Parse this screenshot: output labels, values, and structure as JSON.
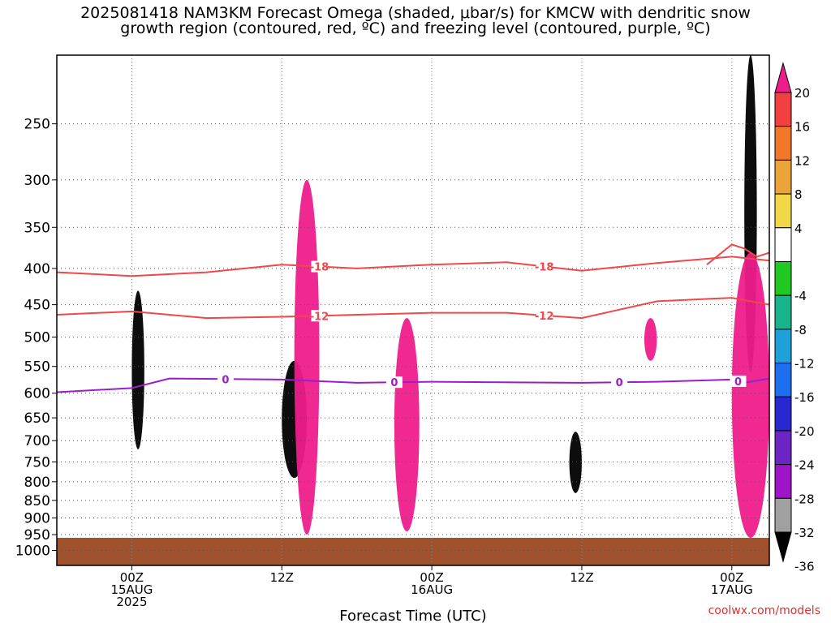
{
  "chart_data": {
    "type": "heatmap",
    "title_line1": "2025081418 NAM3KM Forecast Omega (shaded, μbar/s) for KMCW with dendritic snow",
    "title_line2": "growth region (contoured, red, ºC) and freezing level (contoured, purple, ºC)",
    "xlabel": "Forecast Time (UTC)",
    "ylabel": "",
    "credit": "coolwx.com/models",
    "y_axis": {
      "scale": "log",
      "ylim": [
        1050,
        200
      ],
      "ticks": [
        250,
        300,
        350,
        400,
        450,
        500,
        550,
        600,
        650,
        700,
        750,
        800,
        850,
        900,
        950,
        1000
      ]
    },
    "x_axis": {
      "xlim": [
        "2025-08-14 18Z",
        "2025-08-17 03Z"
      ],
      "ticks": [
        {
          "time": "2025-08-15 00Z",
          "lines": [
            "00Z",
            "15AUG",
            "2025"
          ]
        },
        {
          "time": "2025-08-15 12Z",
          "lines": [
            "12Z"
          ]
        },
        {
          "time": "2025-08-16 00Z",
          "lines": [
            "00Z",
            "16AUG"
          ]
        },
        {
          "time": "2025-08-16 12Z",
          "lines": [
            "12Z"
          ]
        },
        {
          "time": "2025-08-17 00Z",
          "lines": [
            "00Z",
            "17AUG"
          ]
        }
      ]
    },
    "colorbar": {
      "labels": [
        "20",
        "16",
        "12",
        "8",
        "4",
        "-4",
        "-8",
        "-12",
        "-16",
        "-20",
        "-24",
        "-28",
        "-32",
        "-36"
      ],
      "bands": [
        {
          "range": "> 20",
          "color": "#ee1c8c"
        },
        {
          "range": "16 to 20",
          "color": "#f24040"
        },
        {
          "range": "12 to 16",
          "color": "#f07828"
        },
        {
          "range": "8 to 12",
          "color": "#eba43a"
        },
        {
          "range": "4 to 8",
          "color": "#f0d848"
        },
        {
          "range": "-4 to 4",
          "color": "#ffffff"
        },
        {
          "range": "-8 to -4",
          "color": "#22c822"
        },
        {
          "range": "-12 to -8",
          "color": "#18b48c"
        },
        {
          "range": "-16 to -12",
          "color": "#1ea0d8"
        },
        {
          "range": "-20 to -16",
          "color": "#1e6ef0"
        },
        {
          "range": "-24 to -20",
          "color": "#2828d0"
        },
        {
          "range": "-28 to -24",
          "color": "#6c24c4"
        },
        {
          "range": "-32 to -28",
          "color": "#a014c8"
        },
        {
          "range": "-36 to -32",
          "color": "#a0a0a0"
        },
        {
          "range": "< -36",
          "color": "#000000"
        }
      ]
    },
    "ground_color": "#a0522d",
    "contours": [
      {
        "value": "-18",
        "color": "#f04848",
        "labels": [
          "-18",
          "-18"
        ],
        "points": [
          [
            "2025-08-14 18Z",
            405
          ],
          [
            "2025-08-15 00Z",
            410
          ],
          [
            "2025-08-15 06Z",
            405
          ],
          [
            "2025-08-15 12Z",
            395
          ],
          [
            "2025-08-15 18Z",
            400
          ],
          [
            "2025-08-16 00Z",
            395
          ],
          [
            "2025-08-16 06Z",
            392
          ],
          [
            "2025-08-16 12Z",
            403
          ],
          [
            "2025-08-16 18Z",
            393
          ],
          [
            "2025-08-17 00Z",
            385
          ],
          [
            "2025-08-17 03Z",
            390
          ]
        ]
      },
      {
        "value": "-18 (upper)",
        "color": "#f04848",
        "labels": [],
        "points": [
          [
            "2025-08-16 22Z",
            395
          ],
          [
            "2025-08-17 00Z",
            370
          ],
          [
            "2025-08-17 01Z",
            375
          ],
          [
            "2025-08-17 02Z",
            385
          ],
          [
            "2025-08-17 03Z",
            380
          ]
        ]
      },
      {
        "value": "-12",
        "color": "#f04848",
        "labels": [
          "-12",
          "-12"
        ],
        "points": [
          [
            "2025-08-14 18Z",
            465
          ],
          [
            "2025-08-15 00Z",
            460
          ],
          [
            "2025-08-15 06Z",
            470
          ],
          [
            "2025-08-15 12Z",
            468
          ],
          [
            "2025-08-15 18Z",
            465
          ],
          [
            "2025-08-16 00Z",
            462
          ],
          [
            "2025-08-16 06Z",
            462
          ],
          [
            "2025-08-16 12Z",
            470
          ],
          [
            "2025-08-16 18Z",
            445
          ],
          [
            "2025-08-17 00Z",
            440
          ],
          [
            "2025-08-17 03Z",
            450
          ]
        ]
      },
      {
        "value": "0",
        "color": "#9a1ec8",
        "labels": [
          "0",
          "0",
          "0",
          "0"
        ],
        "points": [
          [
            "2025-08-14 18Z",
            598
          ],
          [
            "2025-08-15 00Z",
            590
          ],
          [
            "2025-08-15 03Z",
            572
          ],
          [
            "2025-08-15 12Z",
            574
          ],
          [
            "2025-08-15 18Z",
            580
          ],
          [
            "2025-08-16 00Z",
            578
          ],
          [
            "2025-08-16 12Z",
            580
          ],
          [
            "2025-08-16 18Z",
            578
          ],
          [
            "2025-08-17 00Z",
            574
          ],
          [
            "2025-08-17 01Z",
            580
          ],
          [
            "2025-08-17 03Z",
            572
          ]
        ]
      }
    ],
    "shaded_regions": [
      {
        "band": "< -36",
        "time_range": [
          "2025-08-15 00Z",
          "2025-08-15 01Z"
        ],
        "pressure_range": [
          430,
          720
        ]
      },
      {
        "band": "< -36",
        "time_range": [
          "2025-08-15 12Z",
          "2025-08-15 14Z"
        ],
        "pressure_range": [
          540,
          790
        ]
      },
      {
        "band": "< -36",
        "time_range": [
          "2025-08-16 11Z",
          "2025-08-16 12Z"
        ],
        "pressure_range": [
          680,
          830
        ]
      },
      {
        "band": "< -36",
        "time_range": [
          "2025-08-17 01Z",
          "2025-08-17 02Z"
        ],
        "pressure_range": [
          200,
          560
        ]
      },
      {
        "band": "> 20",
        "time_range": [
          "2025-08-15 13Z",
          "2025-08-15 15Z"
        ],
        "pressure_range": [
          300,
          950
        ]
      },
      {
        "band": "> 20",
        "time_range": [
          "2025-08-15 21Z",
          "2025-08-15 23Z"
        ],
        "pressure_range": [
          470,
          940
        ]
      },
      {
        "band": "> 20",
        "time_range": [
          "2025-08-16 17Z",
          "2025-08-16 18Z"
        ],
        "pressure_range": [
          470,
          540
        ]
      },
      {
        "band": "> 20",
        "time_range": [
          "2025-08-17 00Z",
          "2025-08-17 03Z"
        ],
        "pressure_range": [
          380,
          960
        ]
      }
    ]
  }
}
